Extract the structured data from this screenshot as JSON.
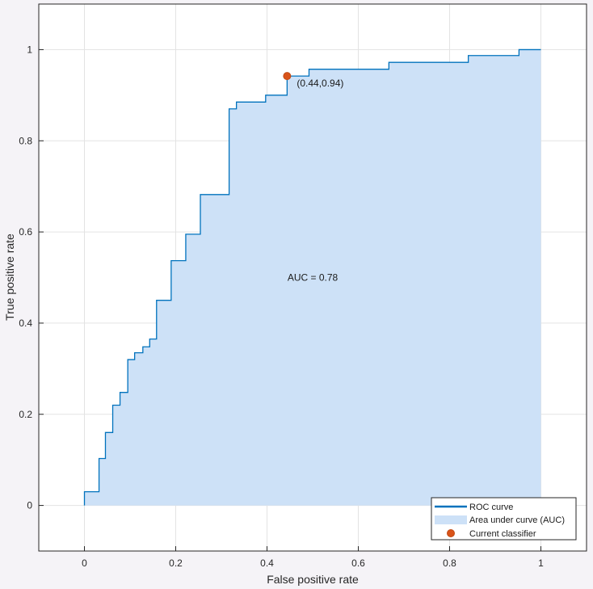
{
  "chart_data": {
    "type": "area",
    "xlabel": "False positive rate",
    "ylabel": "True positive rate",
    "xlim": [
      -0.1,
      1.1
    ],
    "ylim": [
      -0.1,
      1.1
    ],
    "x_ticks": [
      0,
      0.2,
      0.4,
      0.6,
      0.8,
      1
    ],
    "y_ticks": [
      0,
      0.2,
      0.4,
      0.6,
      0.8,
      1
    ],
    "grid": true,
    "legend_position": "bottom-right",
    "auc_label": "AUC = 0.78",
    "series": [
      {
        "name": "ROC curve",
        "color": "#0072bd",
        "x": [
          0,
          0,
          0.032,
          0.032,
          0.046,
          0.046,
          0.062,
          0.062,
          0.078,
          0.078,
          0.095,
          0.095,
          0.11,
          0.11,
          0.128,
          0.128,
          0.143,
          0.143,
          0.158,
          0.158,
          0.19,
          0.19,
          0.222,
          0.222,
          0.254,
          0.254,
          0.317,
          0.317,
          0.333,
          0.333,
          0.397,
          0.397,
          0.444,
          0.444,
          0.492,
          0.492,
          0.667,
          0.667,
          0.841,
          0.841,
          0.952,
          0.952,
          1
        ],
        "y": [
          0,
          0.03,
          0.03,
          0.103,
          0.103,
          0.16,
          0.16,
          0.22,
          0.22,
          0.248,
          0.248,
          0.32,
          0.32,
          0.335,
          0.335,
          0.348,
          0.348,
          0.365,
          0.365,
          0.45,
          0.45,
          0.537,
          0.537,
          0.595,
          0.595,
          0.682,
          0.682,
          0.87,
          0.87,
          0.885,
          0.885,
          0.9,
          0.9,
          0.942,
          0.942,
          0.957,
          0.957,
          0.972,
          0.972,
          0.987,
          0.987,
          1.0,
          1.0
        ]
      },
      {
        "name": "Area under curve (AUC)",
        "color": "#cde1f7"
      },
      {
        "name": "Current classifier",
        "color": "#d95319",
        "type": "scatter",
        "x": [
          0.444
        ],
        "y": [
          0.942
        ],
        "label": "(0.44,0.94)"
      }
    ]
  }
}
